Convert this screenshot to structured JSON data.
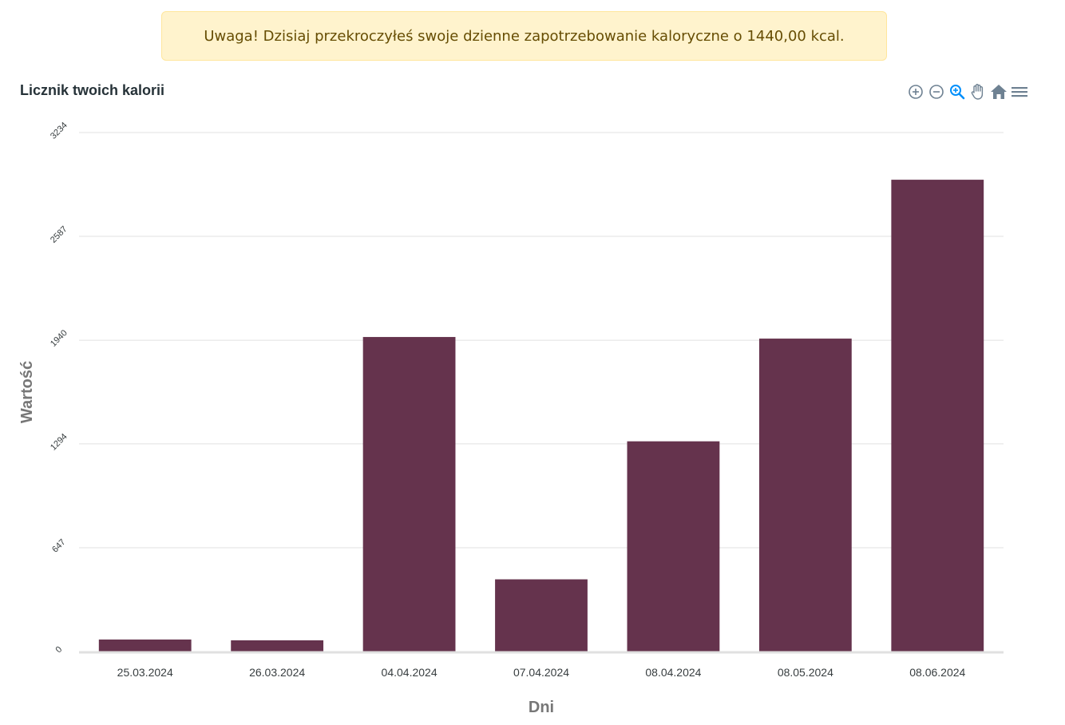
{
  "alert": {
    "text": "Uwaga! Dzisiaj przekroczyłeś swoje dzienne zapotrzebowanie kaloryczne o 1440,00 kcal."
  },
  "toolbar": {
    "icons": [
      "zoom-in-icon",
      "zoom-out-icon",
      "selection-zoom-icon",
      "pan-hand-icon",
      "home-reset-icon",
      "menu-icon"
    ],
    "active_color": "#008ffb",
    "icon_color": "#6e8192"
  },
  "chart_data": {
    "type": "bar",
    "title": "Licznik twoich kalorii",
    "xlabel": "Dni",
    "ylabel": "Wartość",
    "categories": [
      "25.03.2024",
      "26.03.2024",
      "04.04.2024",
      "07.04.2024",
      "08.04.2024",
      "08.05.2024",
      "08.06.2024"
    ],
    "values": [
      75,
      70,
      1960,
      450,
      1310,
      1950,
      2940
    ],
    "yticks": [
      0,
      647,
      1294,
      1940,
      2587,
      3234
    ],
    "ylim": [
      0,
      3234
    ],
    "grid": true,
    "bar_color": "#65334d"
  }
}
